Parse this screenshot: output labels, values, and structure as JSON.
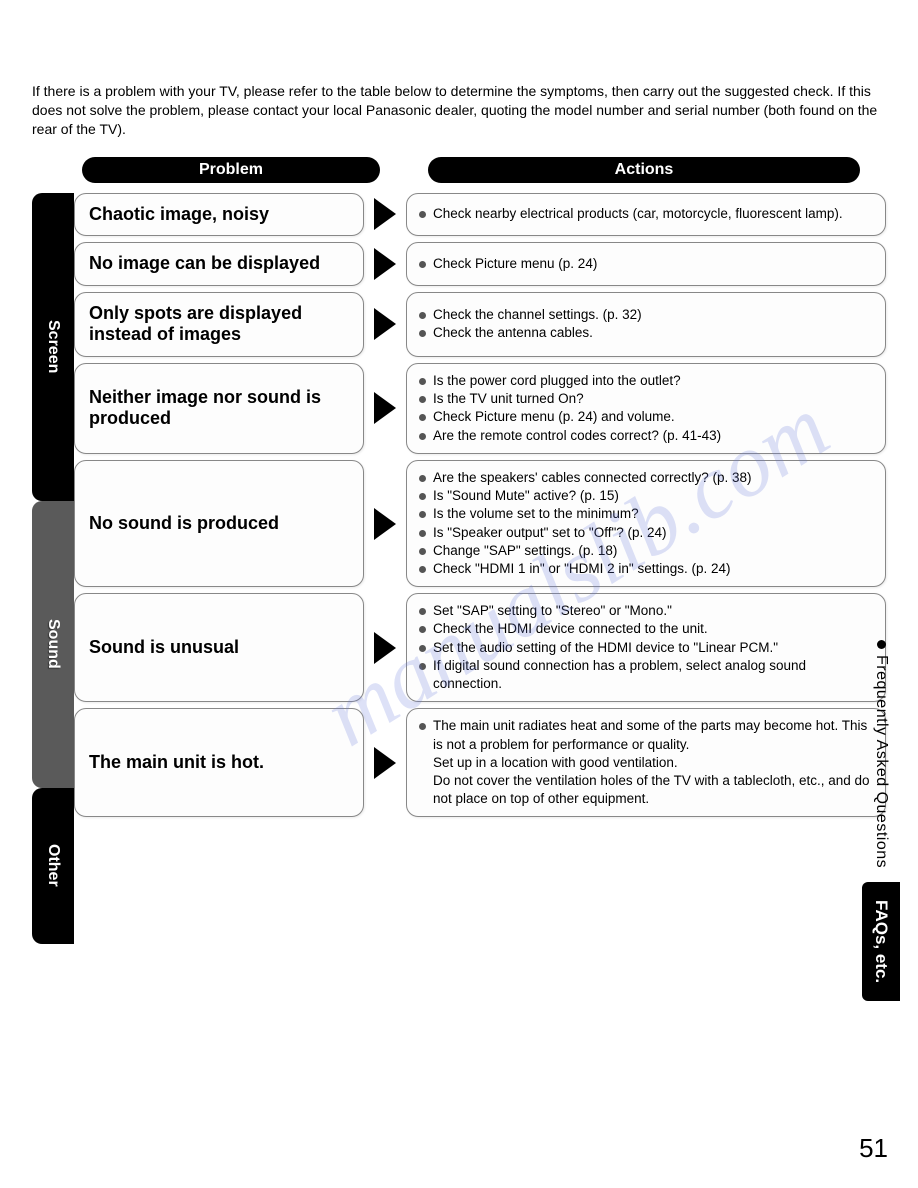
{
  "intro": "If there is a problem with your TV, please refer to the table below to determine the symptoms, then carry out the suggested check. If this does not solve the problem, please contact your local Panasonic dealer, quoting the model number and serial number (both found on the rear of the TV).",
  "headers": {
    "problem": "Problem",
    "actions": "Actions"
  },
  "tabs": {
    "screen": "Screen",
    "sound": "Sound",
    "other": "Other"
  },
  "rows": [
    {
      "problem": "Chaotic image, noisy",
      "actions": [
        "Check nearby electrical products (car, motorcycle, fluorescent lamp)."
      ]
    },
    {
      "problem": "No image can be displayed",
      "actions": [
        "Check Picture menu (p. 24)"
      ]
    },
    {
      "problem": "Only spots are displayed instead of images",
      "actions": [
        "Check the channel settings. (p. 32)",
        "Check the antenna cables."
      ]
    },
    {
      "problem": "Neither image nor sound is produced",
      "actions": [
        "Is the power cord plugged into the outlet?",
        "Is the TV unit turned On?",
        "Check Picture menu (p. 24) and volume.",
        "Are the remote control codes correct? (p. 41-43)"
      ]
    },
    {
      "problem": "No sound is produced",
      "actions": [
        "Are the speakers' cables connected correctly? (p. 38)",
        "Is \"Sound Mute\" active? (p. 15)",
        "Is the volume set to the minimum?",
        "Is \"Speaker output\" set to \"Off\"? (p. 24)",
        "Change \"SAP\" settings. (p. 18)",
        "Check \"HDMI 1 in\" or \"HDMI 2 in\" settings. (p. 24)"
      ]
    },
    {
      "problem": "Sound is unusual",
      "actions": [
        "Set \"SAP\" setting to \"Stereo\" or \"Mono.\"",
        "Check the HDMI device connected to the unit.",
        "Set the audio setting of the HDMI device to \"Linear PCM.\"",
        "If digital sound connection has a problem, select analog sound connection."
      ]
    },
    {
      "problem": "The main unit is hot.",
      "actions": [
        "The main unit radiates heat and some of the parts may become hot. This is not a problem for performance or quality."
      ],
      "extra": [
        "Set up in a location with good ventilation.",
        "Do not cover the ventilation holes of the TV with a tablecloth, etc., and do not place on top of other equipment."
      ]
    }
  ],
  "side": {
    "faq": "Frequently Asked Questions",
    "tab": "FAQs, etc."
  },
  "page_number": "51",
  "watermark": "manualslib.com",
  "colors": {
    "black": "#000000",
    "gray_tab": "#5a5a5a",
    "border": "#888888",
    "bullet": "#555555",
    "watermark": "rgba(100,120,220,0.22)"
  }
}
